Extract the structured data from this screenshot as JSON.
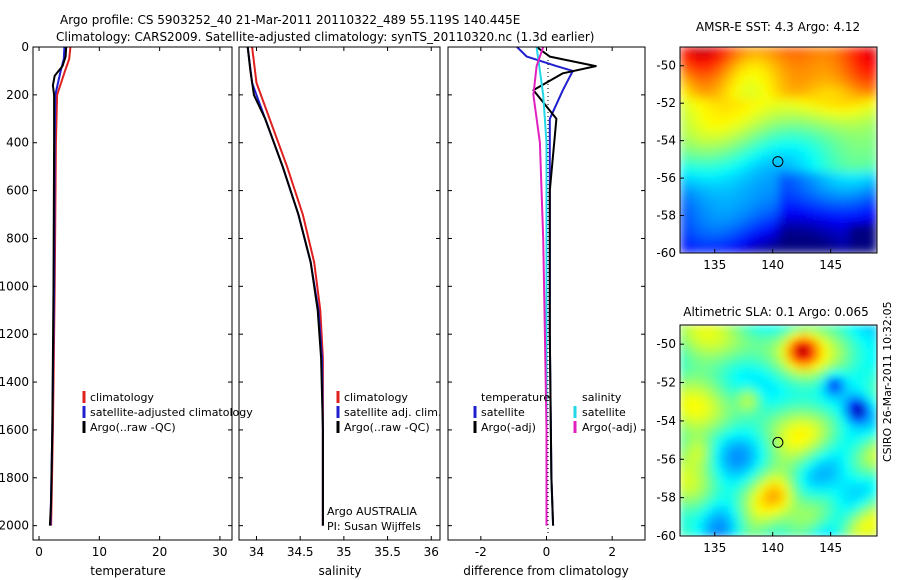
{
  "header": {
    "line1": "Argo profile: CS 5903252_40 21-Mar-2011 20110322_489 55.119S 140.445E",
    "line2": "Climatology: CARS2009. Satellite-adjusted climatology: synTS_20110320.nc (1.3d earlier)"
  },
  "side_label": "CSIRO 26-Mar-2011 10:32:05",
  "colors": {
    "climatology": "#e0201e",
    "satellite": "#1f1fd0",
    "argo": "#000000",
    "sal_satellite": "#22d8e8",
    "sal_argo": "#e020c0"
  },
  "chart_data": [
    {
      "type": "line",
      "id": "temperature",
      "xlabel": "temperature",
      "ylabel": "",
      "xlim": [
        -1,
        32
      ],
      "ylim": [
        0,
        2060
      ],
      "x_ticks": [
        "0",
        "10",
        "20",
        "30"
      ],
      "x_tick_values": [
        0,
        10,
        20,
        30
      ],
      "y_ticks": [
        "0",
        "200",
        "400",
        "600",
        "800",
        "1000",
        "1200",
        "1400",
        "1600",
        "1800",
        "2000"
      ],
      "y_tick_values": [
        0,
        200,
        400,
        600,
        800,
        1000,
        1200,
        1400,
        1600,
        1800,
        2000
      ],
      "legend": [
        "climatology",
        "satellite-adjusted climatology",
        "Argo(..raw -QC)"
      ],
      "series": [
        {
          "name": "climatology",
          "color_key": "climatology",
          "x": [
            5.2,
            5.0,
            4.3,
            3.0,
            2.8,
            2.6,
            2.3,
            2.0
          ],
          "y": [
            0,
            50,
            100,
            200,
            400,
            1000,
            1600,
            2000
          ]
        },
        {
          "name": "satellite-adjusted climatology",
          "color_key": "satellite",
          "x": [
            4.2,
            4.1,
            3.6,
            2.7,
            2.6,
            2.5,
            2.2,
            1.9
          ],
          "y": [
            0,
            50,
            100,
            200,
            400,
            1000,
            1600,
            2000
          ]
        },
        {
          "name": "Argo(..raw -QC)",
          "color_key": "argo",
          "x": [
            4.5,
            4.4,
            3.9,
            2.6,
            2.3,
            2.5,
            2.5,
            2.4,
            2.2,
            2.0,
            1.8
          ],
          "y": [
            0,
            40,
            80,
            120,
            160,
            200,
            400,
            1000,
            1600,
            1900,
            2000
          ]
        }
      ]
    },
    {
      "type": "line",
      "id": "salinity",
      "xlabel": "salinity",
      "xlim": [
        33.8,
        36.1
      ],
      "ylim": [
        0,
        2060
      ],
      "x_ticks": [
        "34",
        "34.5",
        "35",
        "35.5",
        "36"
      ],
      "x_tick_values": [
        34,
        34.5,
        35,
        35.5,
        36
      ],
      "legend": [
        "climatology",
        "satellite adj. clim.",
        "Argo(..raw -QC)"
      ],
      "annotations": [
        "Argo AUSTRALIA",
        "PI: Susan Wijffels"
      ],
      "series": [
        {
          "name": "climatology",
          "color_key": "climatology",
          "x": [
            33.95,
            34.0,
            34.15,
            34.35,
            34.53,
            34.66,
            34.73,
            34.76,
            34.76,
            34.76
          ],
          "y": [
            0,
            150,
            300,
            500,
            700,
            900,
            1100,
            1300,
            1600,
            2000
          ]
        },
        {
          "name": "satellite adj. clim.",
          "color_key": "satellite",
          "x": [
            33.9,
            33.95,
            34.1,
            34.3,
            34.48,
            34.62,
            34.71,
            34.75,
            34.76,
            34.76
          ],
          "y": [
            0,
            150,
            300,
            500,
            700,
            900,
            1100,
            1300,
            1600,
            2000
          ]
        },
        {
          "name": "Argo(..raw -QC)",
          "color_key": "argo",
          "x": [
            33.9,
            33.93,
            33.97,
            34.1,
            34.3,
            34.48,
            34.62,
            34.7,
            34.74,
            34.76,
            34.76
          ],
          "y": [
            0,
            100,
            200,
            300,
            500,
            700,
            900,
            1100,
            1300,
            1600,
            2000
          ]
        }
      ]
    },
    {
      "type": "line",
      "id": "difference",
      "xlabel": "difference from climatology",
      "xlim": [
        -3,
        3
      ],
      "ylim": [
        0,
        2060
      ],
      "x_ticks": [
        "-2",
        "0",
        "2"
      ],
      "x_tick_values": [
        -2,
        0,
        2
      ],
      "legend_temperature": [
        "temperature",
        "satellite",
        "Argo(-adj)"
      ],
      "legend_salinity": [
        "salinity",
        "satellite",
        "Argo(-adj)"
      ],
      "series": [
        {
          "name": "temperature satellite",
          "color_key": "satellite",
          "x": [
            -0.9,
            -0.6,
            0.3,
            0.8,
            0.5,
            0.1,
            0.1,
            0.1,
            0.15,
            0.2
          ],
          "y": [
            0,
            40,
            80,
            100,
            180,
            300,
            600,
            1200,
            1800,
            2000
          ]
        },
        {
          "name": "temperature Argo(-adj)",
          "color_key": "argo",
          "x": [
            -0.3,
            0.1,
            1.5,
            0.5,
            -0.4,
            0.3,
            0.1,
            0.1,
            0.15,
            0.2
          ],
          "y": [
            0,
            40,
            80,
            110,
            180,
            300,
            600,
            1200,
            1800,
            2000
          ]
        },
        {
          "name": "salinity satellite",
          "color_key": "sal_satellite",
          "x": [
            -0.3,
            -0.2,
            -0.1,
            0.0,
            0.0,
            0.0,
            0.0,
            0.0
          ],
          "y": [
            0,
            100,
            200,
            400,
            800,
            1200,
            1600,
            2000
          ]
        },
        {
          "name": "salinity Argo(-adj)",
          "color_key": "sal_argo",
          "x": [
            -0.1,
            -0.3,
            -0.4,
            -0.2,
            -0.1,
            -0.05,
            0.0,
            0.0
          ],
          "y": [
            0,
            80,
            200,
            400,
            800,
            1200,
            1600,
            2000
          ]
        }
      ]
    },
    {
      "type": "heatmap",
      "id": "sst_map",
      "title": "AMSR-E SST: 4.3 Argo: 4.12",
      "xlim": [
        132,
        149
      ],
      "ylim": [
        -60,
        -49
      ],
      "x_ticks": [
        "135",
        "140",
        "145"
      ],
      "x_tick_values": [
        135,
        140,
        145
      ],
      "y_ticks": [
        "-50",
        "-52",
        "-54",
        "-56",
        "-58",
        "-60"
      ],
      "y_tick_values": [
        -50,
        -52,
        -54,
        -56,
        -58,
        -60
      ],
      "marker": {
        "lon": 140.445,
        "lat": -55.119
      }
    },
    {
      "type": "heatmap",
      "id": "sla_map",
      "title": "Altimetric SLA: 0.1 Argo: 0.065",
      "xlim": [
        132,
        149
      ],
      "ylim": [
        -60,
        -49
      ],
      "x_ticks": [
        "135",
        "140",
        "145"
      ],
      "x_tick_values": [
        135,
        140,
        145
      ],
      "y_ticks": [
        "-50",
        "-52",
        "-54",
        "-56",
        "-58",
        "-60"
      ],
      "y_tick_values": [
        -50,
        -52,
        -54,
        -56,
        -58,
        -60
      ],
      "marker": {
        "lon": 140.445,
        "lat": -55.119
      }
    }
  ]
}
